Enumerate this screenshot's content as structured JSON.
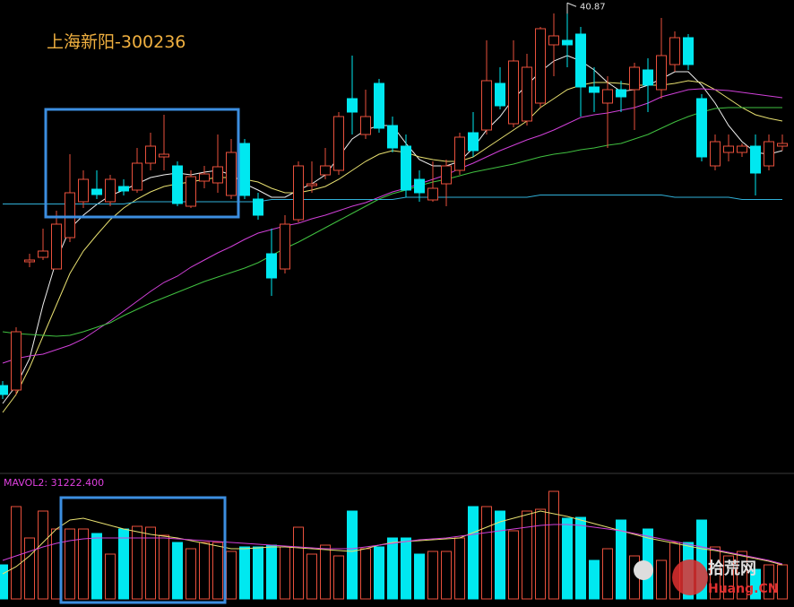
{
  "chart_data": {
    "type": "candlestick",
    "title": "上海新阳-300236",
    "up_color": "#e8503c",
    "down_color": "#00e8f0",
    "ylim": [
      20,
      41
    ],
    "open": [
      23.8,
      23.6,
      29.32,
      29.52,
      29,
      30.4,
      32,
      32.56,
      32,
      32.68,
      32.52,
      33.72,
      34,
      33.6,
      31.8,
      32.92,
      32.84,
      32.28,
      34.6,
      32.12,
      29.68,
      29,
      31.2,
      32.72,
      33.2,
      33.4,
      36.6,
      35,
      37.28,
      35.4,
      34.48,
      33,
      32.08,
      32.8,
      33.4,
      35.08,
      35.2,
      37.28,
      35.48,
      35.6,
      36.4,
      39,
      39.2,
      39.48,
      37.12,
      36.4,
      37,
      37,
      37.88,
      37,
      38.12,
      39.32,
      36.6,
      33.6,
      34.2,
      34.2,
      34.48,
      33.6,
      34.48
    ],
    "high": [
      24,
      26.4,
      29.68,
      30.8,
      31.6,
      34.12,
      33.4,
      33.4,
      33.2,
      33,
      34.4,
      35.08,
      35.88,
      33.8,
      33.4,
      33.6,
      35,
      34.8,
      34.8,
      32.4,
      30.8,
      31.4,
      33.8,
      33.8,
      34.4,
      36,
      38.52,
      37,
      37.48,
      35.8,
      35,
      33.4,
      33.8,
      33.88,
      35.08,
      36,
      39.2,
      38,
      39.2,
      38.6,
      39.8,
      40.4,
      40.87,
      39.8,
      38,
      37.6,
      37.4,
      38.2,
      38.4,
      40.2,
      39.6,
      39.48,
      36.8,
      35,
      35,
      34.6,
      35,
      35,
      35
    ],
    "low": [
      23.2,
      23.4,
      29.08,
      29.4,
      29,
      30.2,
      31.72,
      32.12,
      31.8,
      32.28,
      32.4,
      33.4,
      33.4,
      31.8,
      31.72,
      32.6,
      32.4,
      32.12,
      32.12,
      31.2,
      27.8,
      28.8,
      31.08,
      32.4,
      33,
      33.2,
      35,
      34.8,
      35.08,
      34.2,
      32.2,
      32,
      32,
      31.8,
      33.2,
      34,
      35,
      36.12,
      35.32,
      35.4,
      36.2,
      37.6,
      38,
      35.8,
      36,
      34.4,
      36,
      35.2,
      36,
      36.6,
      37.8,
      37.88,
      33.8,
      33.4,
      33.8,
      34,
      32.28,
      33.4,
      34.28
    ],
    "close": [
      23.4,
      26.2,
      29.4,
      29.8,
      31,
      32.4,
      33,
      32.32,
      33,
      32.48,
      33.72,
      34.48,
      34.12,
      31.92,
      33.12,
      33.24,
      33.56,
      34.2,
      32.28,
      31.4,
      28.6,
      31,
      33.6,
      32.8,
      33.6,
      35.8,
      36,
      35.8,
      35.28,
      34.4,
      32.52,
      32.4,
      32.6,
      33.6,
      34.88,
      34.28,
      37.4,
      36.28,
      38.28,
      38,
      39.72,
      39.4,
      39,
      37.12,
      36.88,
      37,
      36.68,
      38,
      37.2,
      38.52,
      39.32,
      38.12,
      34,
      34.68,
      34.48,
      34.48,
      33.28,
      34.68,
      34.6
    ],
    "ma_lines": [
      {
        "color": "#f0f0f0",
        "values": [
          23,
          23.8,
          25,
          27.4,
          29.4,
          30.8,
          31.4,
          31.88,
          32.28,
          32.52,
          32.8,
          33.08,
          33.2,
          33.28,
          33.2,
          33.32,
          33.4,
          33.2,
          32.8,
          32.52,
          32.2,
          32.2,
          32.52,
          32.8,
          33.2,
          34,
          34.8,
          35.2,
          35.4,
          35.4,
          34.6,
          33.88,
          33.6,
          33.6,
          33.8,
          34.4,
          35.2,
          35.8,
          36.6,
          37.2,
          37.8,
          38.28,
          38.52,
          38.28,
          37.88,
          37.32,
          36.92,
          37,
          37.2,
          37.48,
          37.8,
          37.8,
          37.2,
          36.4,
          35.4,
          34.68,
          34.2,
          34.12,
          34.28
        ]
      },
      {
        "color": "#e8e070",
        "values": [
          22.6,
          23.4,
          24.6,
          26,
          27.4,
          28.8,
          29.8,
          30.52,
          31.2,
          31.72,
          32.12,
          32.44,
          32.68,
          32.8,
          32.88,
          33,
          33.08,
          33.08,
          33,
          32.88,
          32.6,
          32.4,
          32.4,
          32.52,
          32.68,
          33,
          33.4,
          33.8,
          34.12,
          34.28,
          34.2,
          34,
          33.88,
          33.8,
          33.8,
          34,
          34.4,
          34.8,
          35.2,
          35.6,
          36.2,
          36.6,
          37,
          37.2,
          37.32,
          37.32,
          37.28,
          37.2,
          37.2,
          37.2,
          37.28,
          37.4,
          37.32,
          37,
          36.6,
          36.2,
          35.88,
          35.72,
          35.6
        ]
      },
      {
        "color": "#d040d8",
        "values": [
          24.8,
          25,
          25.12,
          25.2,
          25.4,
          25.6,
          25.88,
          26.28,
          26.68,
          27.12,
          27.56,
          28,
          28.4,
          28.68,
          29.08,
          29.4,
          29.72,
          30,
          30.32,
          30.6,
          30.76,
          30.92,
          31.04,
          31.24,
          31.4,
          31.6,
          31.8,
          31.96,
          32.2,
          32.44,
          32.6,
          32.8,
          33,
          33.2,
          33.48,
          33.72,
          34,
          34.28,
          34.52,
          34.76,
          34.96,
          35.2,
          35.48,
          35.76,
          35.88,
          35.96,
          36.08,
          36.2,
          36.4,
          36.68,
          36.84,
          37,
          37.04,
          37,
          36.96,
          36.88,
          36.8,
          36.72,
          36.64
        ]
      },
      {
        "color": "#40c040",
        "values": [
          26.2,
          26.12,
          26.08,
          26.04,
          26,
          26.04,
          26.2,
          26.4,
          26.6,
          26.92,
          27.2,
          27.48,
          27.72,
          27.96,
          28.2,
          28.44,
          28.64,
          28.84,
          29.04,
          29.28,
          29.6,
          29.92,
          30.2,
          30.52,
          30.84,
          31.16,
          31.48,
          31.8,
          32.12,
          32.36,
          32.52,
          32.72,
          32.88,
          33,
          33.16,
          33.32,
          33.44,
          33.56,
          33.68,
          33.84,
          34,
          34.12,
          34.2,
          34.32,
          34.4,
          34.52,
          34.6,
          34.8,
          35,
          35.28,
          35.56,
          35.8,
          36,
          36.16,
          36.2,
          36.2,
          36.2,
          36.2,
          36.2
        ]
      },
      {
        "color": "#30b0d8",
        "values": [
          31.9,
          31.9,
          31.9,
          31.9,
          31.9,
          31.9,
          31.9,
          31.9,
          31.9,
          31.9,
          32,
          32,
          32,
          32,
          32,
          32,
          32,
          32,
          32,
          32,
          32.1,
          32.1,
          32.1,
          32.1,
          32.1,
          32.1,
          32.1,
          32.1,
          32.1,
          32.1,
          32.2,
          32.2,
          32.2,
          32.2,
          32.2,
          32.2,
          32.2,
          32.2,
          32.2,
          32.2,
          32.3,
          32.3,
          32.3,
          32.3,
          32.3,
          32.3,
          32.3,
          32.3,
          32.3,
          32.3,
          32.2,
          32.2,
          32.2,
          32.2,
          32.2,
          32.1,
          32.1,
          32.1,
          32.1
        ]
      }
    ],
    "volume": {
      "label": "MAVOL2: 31222.400",
      "ylim": [
        0,
        104000
      ],
      "values": [
        30400,
        82400,
        54400,
        78400,
        62400,
        62400,
        62400,
        58400,
        40000,
        62400,
        64800,
        64000,
        56800,
        50400,
        44800,
        50400,
        50400,
        42400,
        46400,
        46400,
        48000,
        46400,
        64000,
        40000,
        48000,
        38400,
        78400,
        44800,
        46400,
        54400,
        54400,
        40000,
        42400,
        42400,
        54400,
        82400,
        82400,
        78400,
        60800,
        78400,
        80000,
        96000,
        72000,
        72800,
        34400,
        44800,
        70400,
        38400,
        62400,
        34400,
        50400,
        50400,
        70400,
        46400,
        38400,
        42400,
        26400,
        30400,
        30400
      ],
      "ma_lines": [
        {
          "color": "#e8e070",
          "values": [
            22400,
            28800,
            38400,
            50400,
            62400,
            70400,
            72000,
            68800,
            65600,
            62400,
            60000,
            57600,
            56000,
            54400,
            52000,
            49600,
            47200,
            44800,
            44800,
            45600,
            46400,
            46400,
            45600,
            44800,
            44000,
            43200,
            42400,
            44800,
            48000,
            50400,
            51200,
            52000,
            52800,
            53600,
            54400,
            59200,
            64000,
            68800,
            72000,
            75200,
            78400,
            76000,
            73600,
            70400,
            67200,
            64000,
            60800,
            57600,
            54400,
            52000,
            49600,
            47200,
            44800,
            43200,
            40800,
            38400,
            36000,
            33600,
            30400
          ]
        },
        {
          "color": "#d040d8",
          "values": [
            34400,
            38400,
            42400,
            46400,
            49600,
            52000,
            53600,
            54400,
            54400,
            54400,
            54400,
            54400,
            54400,
            53600,
            52800,
            52000,
            51200,
            50400,
            49600,
            48800,
            48000,
            47200,
            46400,
            45600,
            44800,
            44800,
            44800,
            46400,
            48000,
            49600,
            51200,
            52800,
            53600,
            54400,
            56000,
            57600,
            59200,
            60800,
            62400,
            64000,
            65600,
            66400,
            66400,
            65600,
            64000,
            62400,
            60800,
            58400,
            56000,
            53600,
            51200,
            48800,
            46400,
            44000,
            41600,
            39200,
            36800,
            34400,
            31222.4
          ]
        }
      ]
    }
  },
  "watermark": {
    "brand": "拾荒网",
    "domain": "Huang.CN"
  }
}
